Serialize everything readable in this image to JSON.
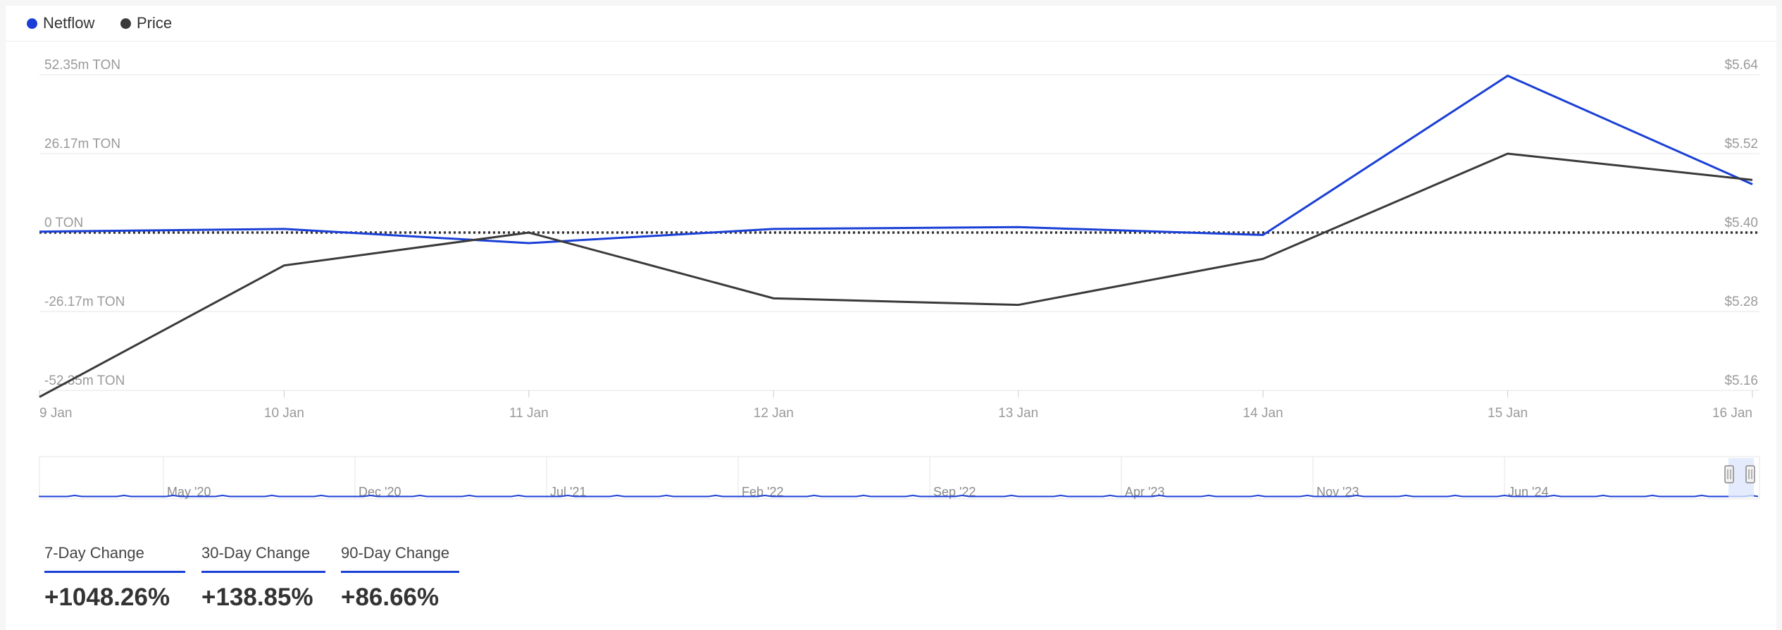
{
  "legend": {
    "netflow_label": "Netflow",
    "price_label": "Price"
  },
  "colors": {
    "netflow": "#1a3fd6",
    "price": "#3a3a3a",
    "grid": "#e6e6e6",
    "axis_text": "#9a9a9a"
  },
  "chart_data": {
    "type": "line",
    "x": [
      "9 Jan",
      "10 Jan",
      "11 Jan",
      "12 Jan",
      "13 Jan",
      "14 Jan",
      "15 Jan",
      "16 Jan"
    ],
    "left_axis": {
      "ticks": [
        "52.35m TON",
        "26.17m TON",
        "0 TON",
        "-26.17m TON",
        "-52.35m TON"
      ],
      "tick_values": [
        52.35,
        26.17,
        0,
        -26.17,
        -52.35
      ],
      "range": [
        -52.35,
        52.35
      ]
    },
    "right_axis": {
      "ticks": [
        "$5.64",
        "$5.52",
        "$5.40",
        "$5.28",
        "$5.16"
      ],
      "tick_values": [
        5.64,
        5.52,
        5.4,
        5.28,
        5.16
      ],
      "range": [
        5.16,
        5.64
      ]
    },
    "series": [
      {
        "name": "Netflow",
        "axis": "left",
        "values": [
          0.3,
          1.2,
          -3.5,
          1.2,
          1.8,
          -0.8,
          52.0,
          16.0
        ]
      },
      {
        "name": "Price",
        "axis": "right",
        "values": [
          5.15,
          5.35,
          5.4,
          5.3,
          5.29,
          5.36,
          5.52,
          5.48
        ]
      }
    ],
    "zero_line": true,
    "grid": true,
    "legend_position": "top-left",
    "navigator": {
      "labels": [
        "May '20",
        "Dec '20",
        "Jul '21",
        "Feb '22",
        "Sep '22",
        "Apr '23",
        "Nov '23",
        "Jun '24"
      ]
    }
  },
  "stats": [
    {
      "label": "7-Day Change",
      "value": "+1048.26%"
    },
    {
      "label": "30-Day Change",
      "value": "+138.85%"
    },
    {
      "label": "90-Day Change",
      "value": "+86.66%"
    }
  ]
}
